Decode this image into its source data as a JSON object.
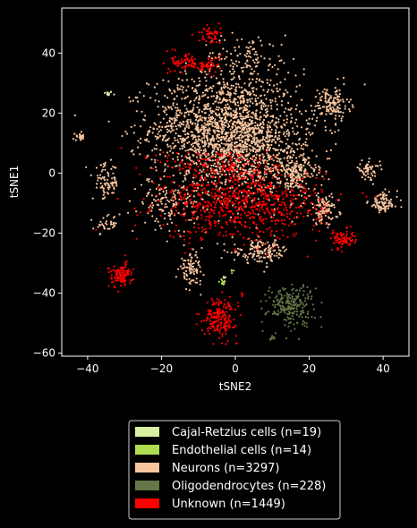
{
  "chart_data": {
    "type": "scatter",
    "title": "",
    "xlabel": "tSNE2",
    "ylabel": "tSNE1",
    "xlim": [
      -47,
      47
    ],
    "ylim": [
      -61,
      55
    ],
    "xticks": [
      -40,
      -20,
      0,
      20,
      40
    ],
    "yticks": [
      -60,
      -40,
      -20,
      0,
      20,
      40
    ],
    "grid": false,
    "legend_position": "below",
    "background": "#000000",
    "series": [
      {
        "name": "Cajal-Retzius cells (n=19)",
        "color": "#d9f0a3",
        "clusters": [
          {
            "cx": -34.5,
            "cy": 26.5,
            "sx": 0.6,
            "sy": 0.4,
            "n": 14
          },
          {
            "cx": -3.0,
            "cy": -35.0,
            "sx": 0.3,
            "sy": 0.6,
            "n": 5
          }
        ]
      },
      {
        "name": "Endothelial cells (n=14)",
        "color": "#addd4e",
        "clusters": [
          {
            "cx": -3.5,
            "cy": -36.5,
            "sx": 0.5,
            "sy": 0.8,
            "n": 10
          },
          {
            "cx": -1.0,
            "cy": -33.0,
            "sx": 0.5,
            "sy": 0.5,
            "n": 4
          }
        ]
      },
      {
        "name": "Neurons (n=3297)",
        "color": "#f6c49e",
        "clusters": [
          {
            "cx": -3,
            "cy": 15,
            "sx": 10,
            "sy": 9,
            "n": 1600
          },
          {
            "cx": 5,
            "cy": 5,
            "sx": 8,
            "sy": 8,
            "n": 500
          },
          {
            "cx": 3,
            "cy": 38,
            "sx": 6,
            "sy": 4,
            "n": 120
          },
          {
            "cx": 26,
            "cy": 23,
            "sx": 2.5,
            "sy": 3,
            "n": 140
          },
          {
            "cx": 17,
            "cy": 0,
            "sx": 2.5,
            "sy": 3,
            "n": 160
          },
          {
            "cx": 24,
            "cy": -12,
            "sx": 2,
            "sy": 2.5,
            "n": 110
          },
          {
            "cx": 40,
            "cy": -10,
            "sx": 2,
            "sy": 1.8,
            "n": 90
          },
          {
            "cx": 36,
            "cy": 1,
            "sx": 1.5,
            "sy": 1.5,
            "n": 55
          },
          {
            "cx": -12,
            "cy": -32,
            "sx": 1.6,
            "sy": 2.5,
            "n": 90
          },
          {
            "cx": -35,
            "cy": -3,
            "sx": 1.8,
            "sy": 3,
            "n": 80
          },
          {
            "cx": -42,
            "cy": 12,
            "sx": 0.9,
            "sy": 0.6,
            "n": 22
          },
          {
            "cx": -35,
            "cy": -17,
            "sx": 1.5,
            "sy": 1.5,
            "n": 35
          },
          {
            "cx": 7,
            "cy": -26,
            "sx": 4,
            "sy": 2,
            "n": 150
          },
          {
            "cx": -18,
            "cy": -10,
            "sx": 4,
            "sy": 4,
            "n": 145
          }
        ]
      },
      {
        "name": "Oligodendrocytes (n=228)",
        "color": "#637748",
        "clusters": [
          {
            "cx": 15,
            "cy": -44,
            "sx": 3.2,
            "sy": 3.5,
            "n": 218
          },
          {
            "cx": 10,
            "cy": -55,
            "sx": 0.4,
            "sy": 0.3,
            "n": 10
          }
        ]
      },
      {
        "name": "Unknown (n=1449)",
        "color": "#ff0000",
        "clusters": [
          {
            "cx": 2,
            "cy": -10,
            "sx": 11,
            "sy": 6,
            "n": 780
          },
          {
            "cx": -4,
            "cy": -48,
            "sx": 2.2,
            "sy": 3.2,
            "n": 190
          },
          {
            "cx": -31,
            "cy": -34,
            "sx": 1.6,
            "sy": 2,
            "n": 110
          },
          {
            "cx": 29,
            "cy": -22,
            "sx": 1.6,
            "sy": 1.5,
            "n": 80
          },
          {
            "cx": -7,
            "cy": 46,
            "sx": 1.5,
            "sy": 1.5,
            "n": 50
          },
          {
            "cx": -13,
            "cy": 37,
            "sx": 2.2,
            "sy": 1.8,
            "n": 75
          },
          {
            "cx": -7,
            "cy": 36,
            "sx": 1.5,
            "sy": 1.5,
            "n": 40
          },
          {
            "cx": -5,
            "cy": 3,
            "sx": 8,
            "sy": 2.5,
            "n": 120
          },
          {
            "cx": 2,
            "cy": -40,
            "sx": 0.6,
            "sy": 0.8,
            "n": 4
          }
        ]
      }
    ]
  }
}
